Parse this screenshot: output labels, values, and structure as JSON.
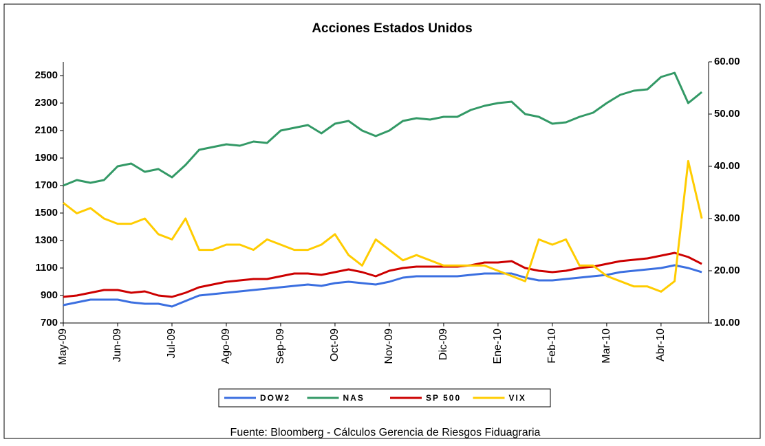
{
  "chart_data": {
    "type": "line",
    "title": "Acciones Estados Unidos",
    "source": "Fuente: Bloomberg - Cálculos Gerencia de Riesgos Fiduagraria",
    "categories": [
      "May-09",
      null,
      null,
      null,
      "Jun-09",
      null,
      null,
      null,
      "Jul-09",
      null,
      null,
      null,
      "Ago-09",
      null,
      null,
      null,
      "Sep-09",
      null,
      null,
      null,
      "Oct-09",
      null,
      null,
      null,
      "Nov-09",
      null,
      null,
      null,
      "Dic-09",
      null,
      null,
      null,
      "Ene-10",
      null,
      null,
      null,
      "Feb-10",
      null,
      null,
      null,
      "Mar-10",
      null,
      null,
      null,
      "Abr-10",
      null,
      null,
      null
    ],
    "ylim": [
      700,
      2600
    ],
    "yticks": [
      700,
      900,
      1100,
      1300,
      1500,
      1700,
      1900,
      2100,
      2300,
      2500
    ],
    "y2lim": [
      10,
      60
    ],
    "y2ticks": [
      {
        "value": 10,
        "label": "10.00"
      },
      {
        "value": 20,
        "label": "20.00"
      },
      {
        "value": 30,
        "label": "30.00"
      },
      {
        "value": 40,
        "label": "40.00"
      },
      {
        "value": 50,
        "label": "50.00"
      },
      {
        "value": 60,
        "label": "60.00"
      }
    ],
    "legend": "bottom",
    "grid": false,
    "series": [
      {
        "name": "DOW2",
        "color": "#3b6fe0",
        "values": [
          830,
          850,
          870,
          870,
          870,
          850,
          840,
          840,
          820,
          860,
          900,
          910,
          920,
          930,
          940,
          950,
          960,
          970,
          980,
          970,
          990,
          1000,
          990,
          980,
          1000,
          1030,
          1040,
          1040,
          1040,
          1040,
          1050,
          1060,
          1060,
          1060,
          1030,
          1010,
          1010,
          1020,
          1030,
          1040,
          1050,
          1070,
          1080,
          1090,
          1100,
          1120,
          1100,
          1070
        ]
      },
      {
        "name": "NAS",
        "color": "#339966",
        "values": [
          1700,
          1740,
          1720,
          1740,
          1840,
          1860,
          1800,
          1820,
          1760,
          1850,
          1960,
          1980,
          2000,
          1990,
          2020,
          2010,
          2100,
          2120,
          2140,
          2080,
          2150,
          2170,
          2100,
          2060,
          2100,
          2170,
          2190,
          2180,
          2200,
          2200,
          2250,
          2280,
          2300,
          2310,
          2220,
          2200,
          2150,
          2160,
          2200,
          2230,
          2300,
          2360,
          2390,
          2400,
          2490,
          2520,
          2300,
          2380
        ]
      },
      {
        "name": "SP 500",
        "color": "#cc0000",
        "values": [
          890,
          900,
          920,
          940,
          940,
          920,
          930,
          900,
          890,
          920,
          960,
          980,
          1000,
          1010,
          1020,
          1020,
          1040,
          1060,
          1060,
          1050,
          1070,
          1090,
          1070,
          1040,
          1080,
          1100,
          1110,
          1110,
          1110,
          1110,
          1120,
          1140,
          1140,
          1150,
          1100,
          1080,
          1070,
          1080,
          1100,
          1110,
          1130,
          1150,
          1160,
          1170,
          1190,
          1210,
          1180,
          1130
        ]
      },
      {
        "name": "VIX",
        "color": "#ffcc00",
        "axis": "y2",
        "values": [
          33,
          31,
          32,
          30,
          29,
          29,
          30,
          27,
          26,
          30,
          24,
          24,
          25,
          25,
          24,
          26,
          25,
          24,
          24,
          25,
          27,
          23,
          21,
          26,
          24,
          22,
          23,
          22,
          21,
          21,
          21,
          21,
          20,
          19,
          18,
          26,
          25,
          26,
          21,
          21,
          19,
          18,
          17,
          17,
          16,
          18,
          41,
          30
        ]
      }
    ]
  }
}
